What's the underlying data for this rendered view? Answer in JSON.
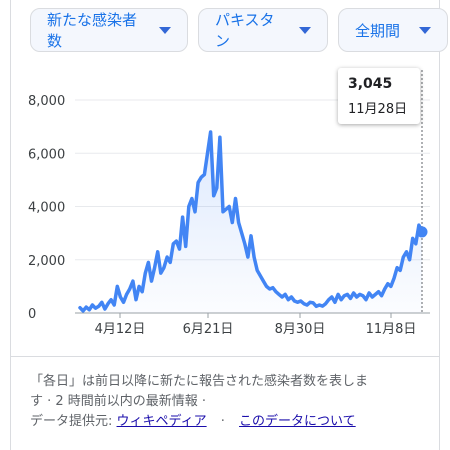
{
  "filters": {
    "metric": "新たな感染者数",
    "region": "パキスタン",
    "range": "全期間"
  },
  "tooltip": {
    "value": "3,045",
    "date": "11月28日"
  },
  "chart_data": {
    "type": "line",
    "x_ticks": [
      "4月12日",
      "6月21日",
      "8月30日",
      "11月8日"
    ],
    "y_ticks": [
      "0",
      "2,000",
      "4,000",
      "6,000",
      "8,000"
    ],
    "ylim": [
      0,
      8000
    ],
    "series": [
      {
        "values": [
          200,
          80,
          220,
          120,
          300,
          180,
          250,
          400,
          150,
          350,
          500,
          300,
          1000,
          600,
          400,
          700,
          900,
          1200,
          500,
          1000,
          800,
          1500,
          1900,
          1200,
          1700,
          2300,
          1500,
          1700,
          2100,
          1900,
          2600,
          2700,
          2400,
          3600,
          2500,
          4000,
          4300,
          3800,
          4900,
          5100,
          5200,
          6000,
          6800,
          4400,
          4700,
          6600,
          3800,
          3900,
          4000,
          3400,
          4300,
          3400,
          3000,
          2600,
          2100,
          2900,
          2100,
          1600,
          1400,
          1200,
          1000,
          900,
          950,
          800,
          700,
          600,
          700,
          500,
          600,
          450,
          400,
          450,
          350,
          300,
          400,
          380,
          250,
          300,
          260,
          350,
          500,
          600,
          400,
          700,
          500,
          650,
          700,
          550,
          750,
          600,
          700,
          650,
          500,
          750,
          600,
          700,
          800,
          650,
          900,
          1100,
          1000,
          1300,
          1700,
          1600,
          2100,
          2300,
          2000,
          2800,
          2600,
          3300,
          3045
        ]
      }
    ]
  },
  "footnote": {
    "line1": "「各日」は前日以降に新たに報告された感染者数を表しま",
    "line2": "す · 2 時間前以内の最新情報 ·",
    "source_label": "データ提供元:",
    "source_link": "ウィキペディア",
    "about_link": "このデータについて"
  }
}
